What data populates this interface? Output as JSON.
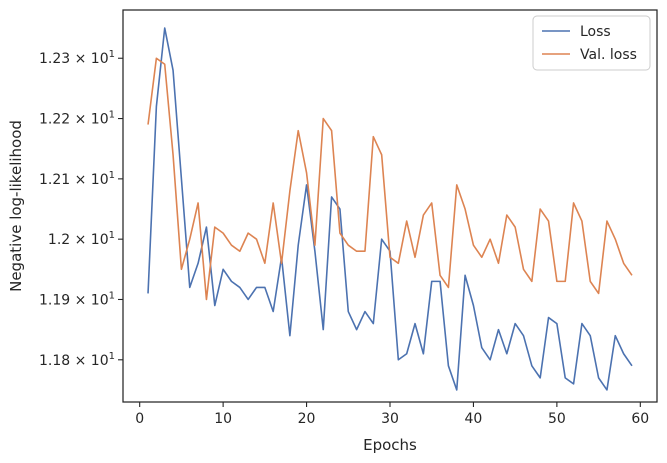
{
  "chart_data": {
    "type": "line",
    "xlabel": "Epochs",
    "ylabel": "Negative log-likelihood",
    "xlim": [
      -2,
      62
    ],
    "ylim": [
      11.73,
      12.38
    ],
    "x_ticks": [
      0,
      10,
      20,
      30,
      40,
      50,
      60
    ],
    "x_tick_labels": [
      "0",
      "10",
      "20",
      "30",
      "40",
      "50",
      "60"
    ],
    "y_ticks": [
      11.8,
      11.9,
      12.0,
      12.1,
      12.2,
      12.3
    ],
    "y_tick_labels": [
      "1.18",
      "1.19",
      "1.2",
      "1.21",
      "1.22",
      "1.23"
    ],
    "y_tick_exponent": "10",
    "y_tick_power": "1",
    "y_tick_times": "×",
    "grid": false,
    "legend_position": "top-right",
    "series": [
      {
        "name": "Loss",
        "color": "#4c72b0",
        "x": [
          1,
          2,
          3,
          4,
          5,
          6,
          7,
          8,
          9,
          10,
          11,
          12,
          13,
          14,
          15,
          16,
          17,
          18,
          19,
          20,
          21,
          22,
          23,
          24,
          25,
          26,
          27,
          28,
          29,
          30,
          31,
          32,
          33,
          34,
          35,
          36,
          37,
          38,
          39,
          40,
          41,
          42,
          43,
          44,
          45,
          46,
          47,
          48,
          49,
          50,
          51,
          52,
          53,
          54,
          55,
          56,
          57,
          58,
          59
        ],
        "values": [
          11.91,
          12.22,
          12.35,
          12.28,
          12.1,
          11.92,
          11.96,
          12.02,
          11.89,
          11.95,
          11.93,
          11.92,
          11.9,
          11.92,
          11.92,
          11.88,
          11.97,
          11.84,
          11.99,
          12.09,
          11.98,
          11.85,
          12.07,
          12.05,
          11.88,
          11.85,
          11.88,
          11.86,
          12.0,
          11.98,
          11.8,
          11.81,
          11.86,
          11.81,
          11.93,
          11.93,
          11.79,
          11.75,
          11.94,
          11.89,
          11.82,
          11.8,
          11.85,
          11.81,
          11.86,
          11.84,
          11.79,
          11.77,
          11.87,
          11.86,
          11.77,
          11.76,
          11.86,
          11.84,
          11.77,
          11.75,
          11.84,
          11.81,
          11.79
        ]
      },
      {
        "name": "Val. loss",
        "color": "#dd8452",
        "x": [
          1,
          2,
          3,
          4,
          5,
          6,
          7,
          8,
          9,
          10,
          11,
          12,
          13,
          14,
          15,
          16,
          17,
          18,
          19,
          20,
          21,
          22,
          23,
          24,
          25,
          26,
          27,
          28,
          29,
          30,
          31,
          32,
          33,
          34,
          35,
          36,
          37,
          38,
          39,
          40,
          41,
          42,
          43,
          44,
          45,
          46,
          47,
          48,
          49,
          50,
          51,
          52,
          53,
          54,
          55,
          56,
          57,
          58,
          59
        ],
        "values": [
          12.19,
          12.3,
          12.29,
          12.14,
          11.95,
          12.0,
          12.06,
          11.9,
          12.02,
          12.01,
          11.99,
          11.98,
          12.01,
          12.0,
          11.96,
          12.06,
          11.96,
          12.08,
          12.18,
          12.11,
          11.99,
          12.2,
          12.18,
          12.01,
          11.99,
          11.98,
          11.98,
          12.17,
          12.14,
          11.97,
          11.96,
          12.03,
          11.97,
          12.04,
          12.06,
          11.94,
          11.92,
          12.09,
          12.05,
          11.99,
          11.97,
          12.0,
          11.96,
          12.04,
          12.02,
          11.95,
          11.93,
          12.05,
          12.03,
          11.93,
          11.93,
          12.06,
          12.03,
          11.93,
          11.91,
          12.03,
          12.0,
          11.96,
          11.94
        ]
      }
    ]
  }
}
